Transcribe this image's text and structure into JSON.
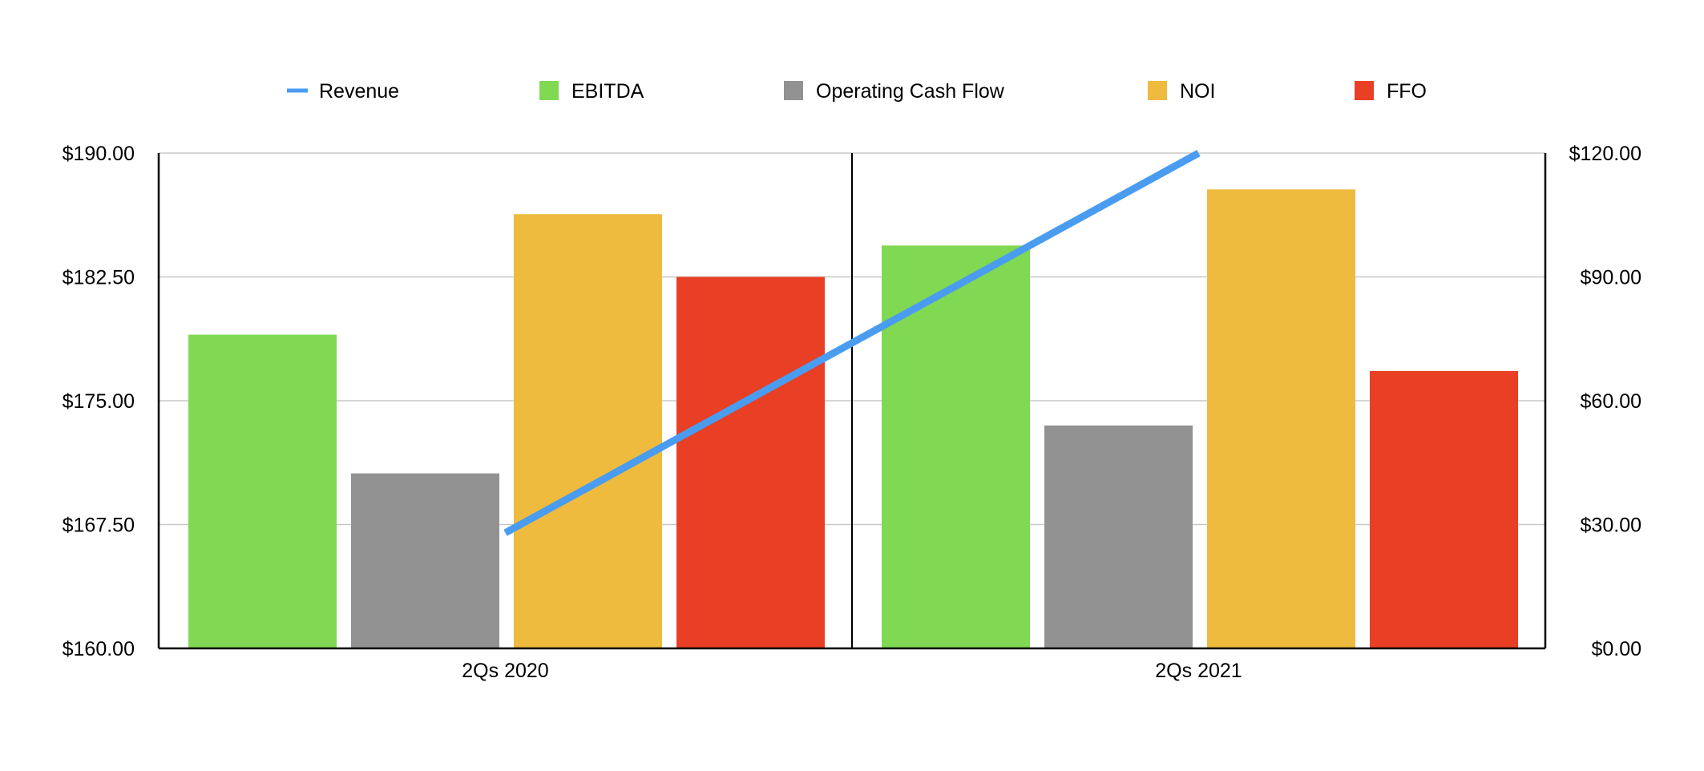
{
  "chart_data": {
    "type": "bar",
    "categories": [
      "2Qs 2020",
      "2Qs 2021"
    ],
    "series": [
      {
        "name": "EBITDA",
        "axis": "left",
        "kind": "bar",
        "color": "#80d853",
        "values": [
          179.0,
          184.4
        ]
      },
      {
        "name": "Operating Cash Flow",
        "axis": "left",
        "kind": "bar",
        "color": "#929292",
        "values": [
          170.6,
          173.5
        ]
      },
      {
        "name": "NOI",
        "axis": "left",
        "kind": "bar",
        "color": "#eebb3e",
        "values": [
          186.3,
          187.8
        ]
      },
      {
        "name": "FFO",
        "axis": "left",
        "kind": "bar",
        "color": "#e83f25",
        "values": [
          182.5,
          176.8
        ]
      },
      {
        "name": "Revenue",
        "axis": "right",
        "kind": "line",
        "color": "#4a9cf0",
        "values": [
          28.0,
          120.0
        ]
      }
    ],
    "y_left": {
      "ylim": [
        160,
        190
      ],
      "ticks": [
        160,
        167.5,
        175,
        182.5,
        190
      ],
      "tick_labels": [
        "$160.00",
        "$167.50",
        "$175.00",
        "$182.50",
        "$190.00"
      ]
    },
    "y_right": {
      "ylim": [
        0,
        120
      ],
      "ticks": [
        0,
        30,
        60,
        90,
        120
      ],
      "tick_labels": [
        "$0.00",
        "$30.00",
        "$60.00",
        "$90.00",
        "$120.00"
      ]
    },
    "legend": {
      "position": "top",
      "entries": [
        {
          "label": "Revenue",
          "marker": "line",
          "color": "#4a9cf0"
        },
        {
          "label": "EBITDA",
          "marker": "square",
          "color": "#80d853"
        },
        {
          "label": "Operating Cash Flow",
          "marker": "square",
          "color": "#929292"
        },
        {
          "label": "NOI",
          "marker": "square",
          "color": "#eebb3e"
        },
        {
          "label": "FFO",
          "marker": "square",
          "color": "#e83f25"
        }
      ]
    },
    "grid": true
  }
}
